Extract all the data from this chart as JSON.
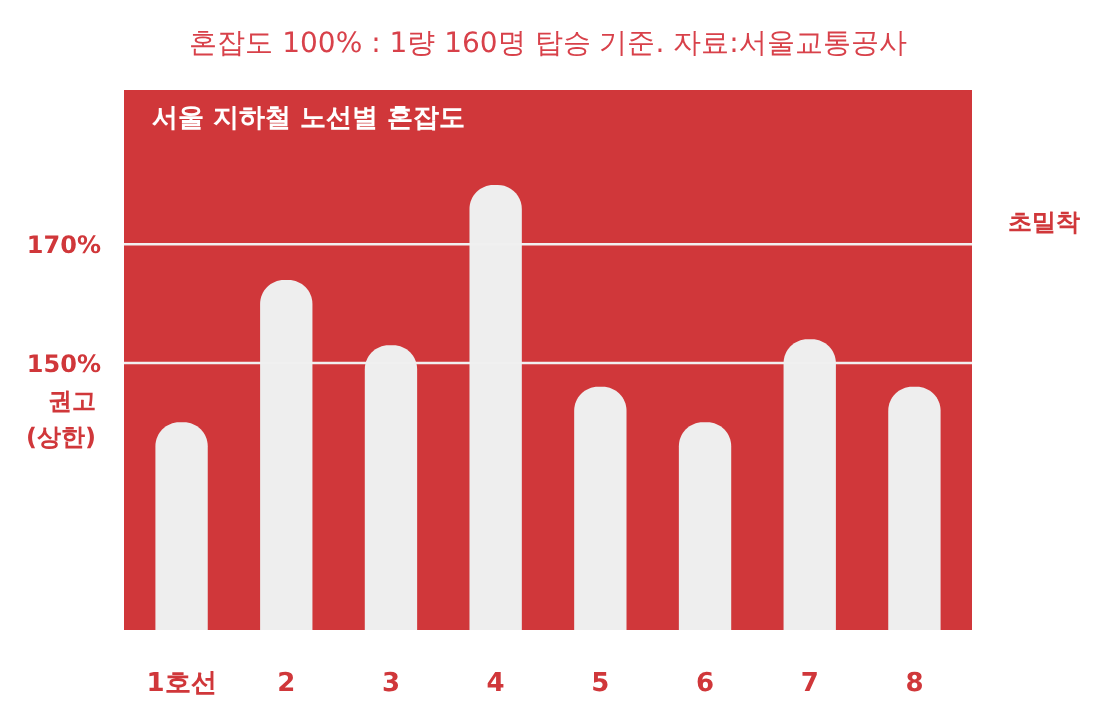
{
  "chart_data": {
    "type": "bar",
    "title": "혼잡도 100% : 1량 160명 탑승 기준. 자료:서울교통공사",
    "subtitle": "서울 지하철 노선별 혼잡도",
    "categories": [
      "1호선",
      "2",
      "3",
      "4",
      "5",
      "6",
      "7",
      "8"
    ],
    "series": [
      {
        "color": "#eeeeee",
        "values": [
          140,
          164,
          153,
          180,
          146,
          140,
          154,
          146
        ]
      }
    ],
    "ylim": [
      105,
      196
    ],
    "yticks": [
      {
        "value": 150,
        "label": "150%"
      },
      {
        "value": 170,
        "label": "170%"
      }
    ],
    "grid": false,
    "ref_lines": [
      {
        "axis": "y",
        "value": 150,
        "color": "#f0f0f0"
      },
      {
        "axis": "y",
        "value": 170,
        "color": "#f0f0f0"
      }
    ],
    "annotations": [
      "권고 (상한)",
      "초밀착"
    ]
  }
}
